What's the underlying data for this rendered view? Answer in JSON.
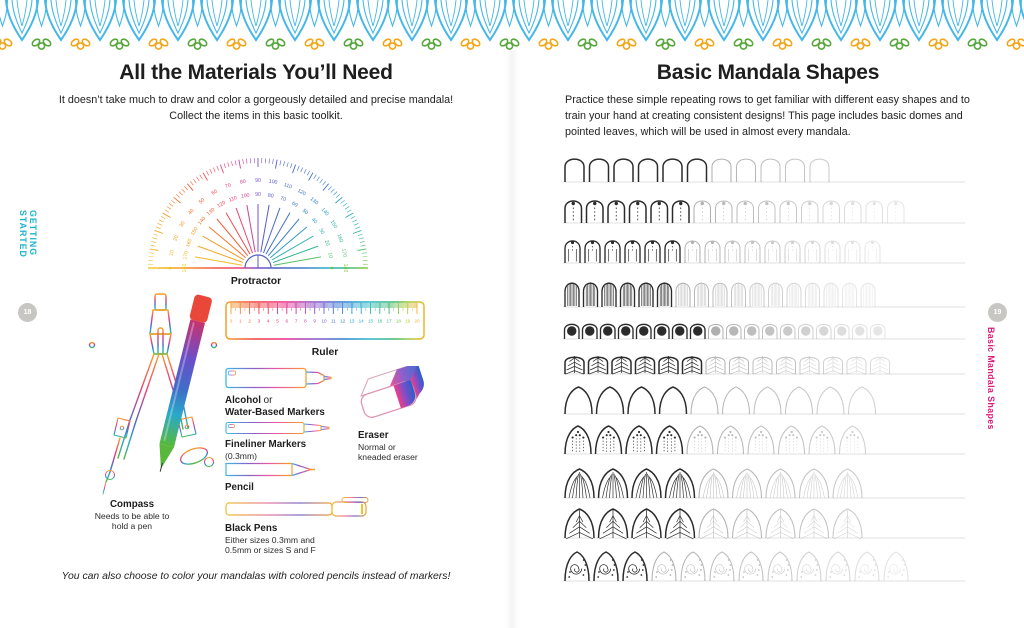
{
  "left": {
    "sidebar_label": "GETTING STARTED",
    "page_number": "18",
    "title": "All the Materials You’ll Need",
    "intro_line1": "It doesn’t take much to draw and color a gorgeously detailed and precise mandala!",
    "intro_line2": "Collect the items in this basic toolkit.",
    "protractor_label": "Protractor",
    "ruler_label": "Ruler",
    "marker_bold": "Alcohol",
    "marker_or": "or",
    "marker_line2": "Water-Based Markers",
    "fineliner_label": "Fineliner Markers",
    "fineliner_note": "(0.3mm)",
    "pencil_label": "Pencil",
    "blackpens_label": "Black Pens",
    "blackpens_note1": "Either sizes 0.3mm and",
    "blackpens_note2": "0.5mm or sizes S and F",
    "eraser_label": "Eraser",
    "eraser_note1": "Normal or",
    "eraser_note2": "kneaded eraser",
    "compass_label": "Compass",
    "compass_note1": "Needs to be able to",
    "compass_note2": "hold a pen",
    "footnote": "You can also choose to color your mandalas with colored pencils instead of markers!"
  },
  "right": {
    "sidebar_label": "Basic Mandala Shapes",
    "page_number": "19",
    "title": "Basic Mandala Shapes",
    "intro": "Practice these simple repeating rows to get familiar with different easy shapes and to train your hand at creating consistent designs! This page includes basic domes and pointed leaves, which will be used in almost every mandala.",
    "practice_rows": [
      {
        "name": "plain-domes",
        "type": "arch",
        "total": 11,
        "dark": 6
      },
      {
        "name": "domes-dot-dashed-line",
        "type": "arch_dot_dash",
        "total": 16,
        "dark": 6
      },
      {
        "name": "domes-dot-inner-lines",
        "type": "arch_dot_sides",
        "total": 16,
        "dark": 6
      },
      {
        "name": "striped-domes",
        "type": "arch_stripes",
        "total": 17,
        "dark": 6
      },
      {
        "name": "domes-big-dot",
        "type": "arch_bigdot",
        "total": 18,
        "dark": 8
      },
      {
        "name": "hatched-fans",
        "type": "fan_hatch",
        "total": 14,
        "dark": 6
      },
      {
        "name": "pointed-arches",
        "type": "pointed_arch",
        "total": 10,
        "dark": 4
      },
      {
        "name": "pointed-arches-seeds",
        "type": "pointed_dots",
        "total": 10,
        "dark": 4
      },
      {
        "name": "buds-radiating-lines",
        "type": "bud_lines",
        "total": 9,
        "dark": 4
      },
      {
        "name": "veined-leaves",
        "type": "leaf_veins",
        "total": 9,
        "dark": 4
      },
      {
        "name": "spiral-leaves",
        "type": "spiral_leaf",
        "total": 12,
        "dark": 3
      }
    ]
  },
  "protractor_scale": {
    "outer": [
      "0",
      "10",
      "20",
      "30",
      "40",
      "50",
      "60",
      "70",
      "80",
      "90",
      "100",
      "110",
      "120",
      "130",
      "140",
      "150",
      "160",
      "170",
      "180"
    ],
    "inner": [
      "180",
      "170",
      "160",
      "150",
      "140",
      "130",
      "120",
      "110",
      "100",
      "90",
      "80",
      "70",
      "60",
      "50",
      "40",
      "30",
      "20",
      "10",
      "0"
    ]
  },
  "ruler_scale": [
    "0",
    "1",
    "2",
    "3",
    "4",
    "5",
    "6",
    "7",
    "8",
    "9",
    "10",
    "11",
    "12",
    "13",
    "14",
    "15",
    "16",
    "17",
    "18",
    "19",
    "20"
  ],
  "colors": {
    "sidebar_teal": "#1cb4c9",
    "sidebar_pink": "#d81b7a",
    "border_blue": "#45b7e8",
    "border_green": "#57a83c",
    "border_yellow": "#f2a71b",
    "badge_gray": "#c8c6c3"
  }
}
